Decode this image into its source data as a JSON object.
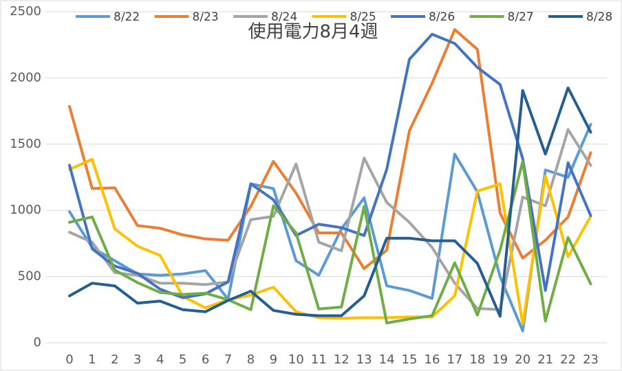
{
  "chart_data": {
    "type": "line",
    "title": "使用電力8月4週",
    "categories": [
      "0",
      "1",
      "2",
      "3",
      "4",
      "5",
      "6",
      "7",
      "8",
      "9",
      "10",
      "11",
      "12",
      "13",
      "14",
      "15",
      "16",
      "17",
      "18",
      "19",
      "20",
      "21",
      "22",
      "23"
    ],
    "ylim": [
      0,
      2500
    ],
    "yticks": [
      0,
      500,
      1000,
      1500,
      2000,
      2500
    ],
    "grid": true,
    "legend": "top",
    "series": [
      {
        "name": "8/22",
        "color": "#5b9bd5",
        "values": [
          990,
          720,
          620,
          520,
          510,
          520,
          545,
          330,
          1200,
          1165,
          620,
          510,
          860,
          1095,
          430,
          395,
          335,
          1425,
          1140,
          500,
          90,
          1305,
          1250,
          1650
        ]
      },
      {
        "name": "8/23",
        "color": "#ed7d31",
        "values": [
          1785,
          1165,
          1170,
          885,
          865,
          815,
          785,
          775,
          1030,
          1370,
          1130,
          830,
          830,
          560,
          700,
          1600,
          1960,
          2365,
          2215,
          980,
          640,
          775,
          950,
          1435
        ]
      },
      {
        "name": "8/24",
        "color": "#a5a5a5",
        "values": [
          835,
          760,
          530,
          510,
          450,
          450,
          440,
          460,
          930,
          955,
          1350,
          760,
          695,
          1395,
          1060,
          910,
          720,
          450,
          260,
          250,
          1100,
          1035,
          1610,
          1340
        ]
      },
      {
        "name": "8/25",
        "color": "#ffc000",
        "values": [
          1310,
          1385,
          860,
          730,
          660,
          350,
          265,
          325,
          360,
          420,
          235,
          190,
          185,
          190,
          190,
          195,
          195,
          355,
          1145,
          1200,
          140,
          1260,
          650,
          955
        ]
      },
      {
        "name": "8/26",
        "color": "#4472c4",
        "values": [
          1340,
          710,
          580,
          525,
          405,
          340,
          370,
          460,
          1200,
          1080,
          810,
          895,
          870,
          810,
          1310,
          2140,
          2330,
          2260,
          2080,
          1950,
          1390,
          395,
          1360,
          960
        ]
      },
      {
        "name": "8/27",
        "color": "#70ad47",
        "values": [
          910,
          950,
          550,
          455,
          380,
          365,
          375,
          325,
          250,
          1035,
          830,
          255,
          270,
          1030,
          150,
          180,
          205,
          605,
          210,
          700,
          1370,
          165,
          795,
          445
        ]
      },
      {
        "name": "8/28",
        "color": "#255e91",
        "values": [
          355,
          450,
          430,
          300,
          315,
          250,
          235,
          320,
          390,
          245,
          215,
          205,
          205,
          355,
          790,
          790,
          770,
          770,
          600,
          200,
          1905,
          1425,
          1925,
          1590
        ]
      }
    ]
  }
}
